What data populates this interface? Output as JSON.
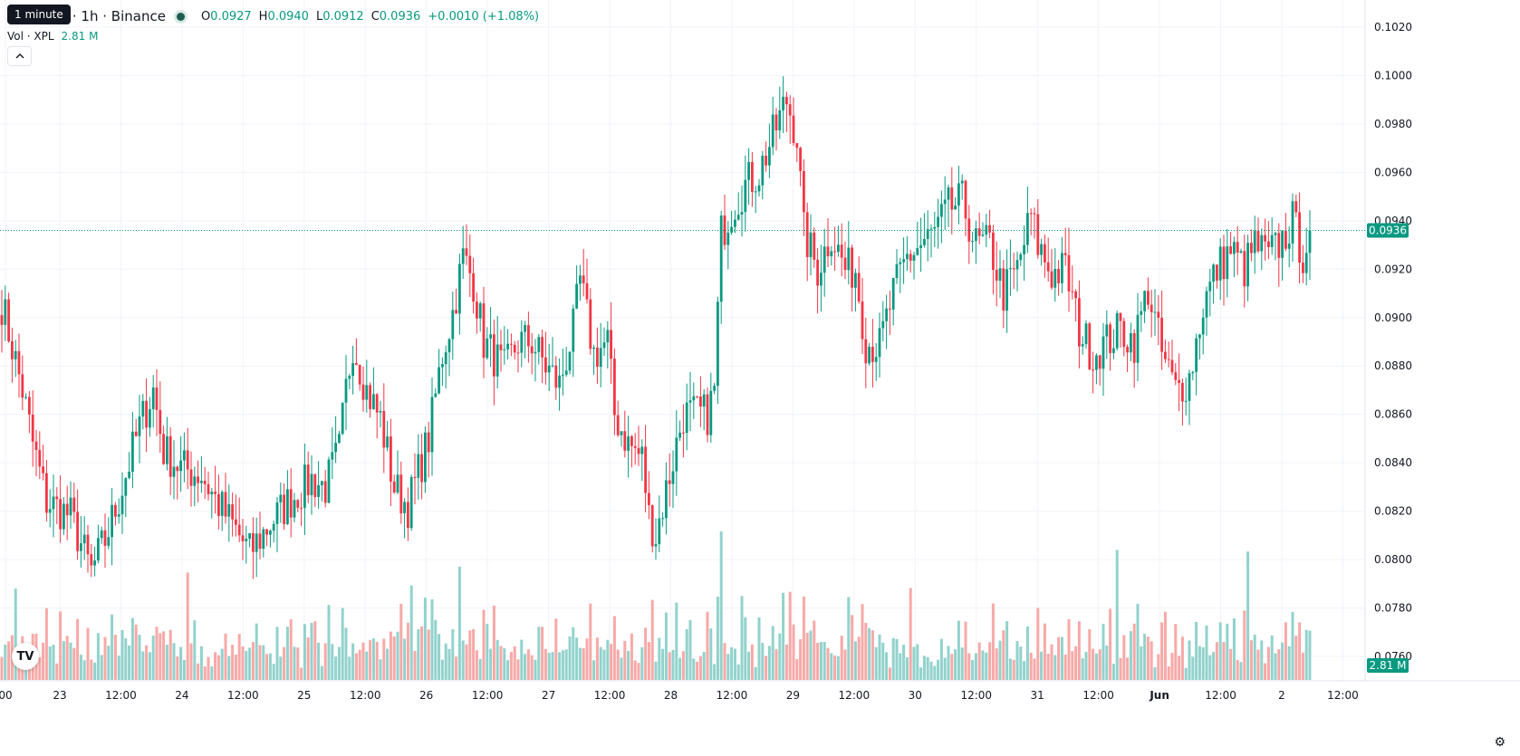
{
  "header": {
    "symbol": "TetherUS · 1h · Binance",
    "tooltip": "1 minute",
    "open_label": "O",
    "open": "0.0927",
    "high_label": "H",
    "high": "0.0940",
    "low_label": "L",
    "low": "0.0912",
    "close_label": "C",
    "close": "0.0936",
    "change": "+0.0010 (+1.08%)"
  },
  "volume": {
    "label": "Vol · XPL",
    "value": "2.81 M"
  },
  "price_tag": "0.0936",
  "volume_tag": "2.81 M",
  "icons": {
    "collapse": "chevron-up-icon",
    "logo": "tradingview-logo-icon",
    "settings": "gear-icon"
  },
  "colors": {
    "up": "#089981",
    "down": "#f23645",
    "up_volume": "#92d2cc",
    "down_volume": "#f7a9a7",
    "grid": "#f0f3fa"
  },
  "chart_data": {
    "type": "candlestick",
    "timeframe": "1h",
    "ylim": [
      0.0752,
      0.1028
    ],
    "y_ticks": [
      "0.0760",
      "0.0780",
      "0.0800",
      "0.0820",
      "0.0840",
      "0.0860",
      "0.0880",
      "0.0900",
      "0.0920",
      "0.0940",
      "0.0960",
      "0.0980",
      "0.1000",
      "0.1020"
    ],
    "x_ticks": [
      "00",
      "23",
      "12:00",
      "24",
      "12:00",
      "25",
      "12:00",
      "26",
      "12:00",
      "27",
      "12:00",
      "28",
      "12:00",
      "29",
      "12:00",
      "30",
      "12:00",
      "31",
      "12:00",
      "Jun",
      "12:00",
      "2",
      "12:00"
    ],
    "x_tick_bold": [
      19
    ],
    "last_close": 0.0936,
    "waypoints": [
      [
        0,
        0.0906
      ],
      [
        3,
        0.0888
      ],
      [
        6,
        0.087
      ],
      [
        9,
        0.0848
      ],
      [
        13,
        0.0824
      ],
      [
        20,
        0.0818
      ],
      [
        26,
        0.0795
      ],
      [
        30,
        0.0808
      ],
      [
        34,
        0.0825
      ],
      [
        40,
        0.0855
      ],
      [
        44,
        0.087
      ],
      [
        47,
        0.0845
      ],
      [
        52,
        0.0838
      ],
      [
        58,
        0.0835
      ],
      [
        62,
        0.0825
      ],
      [
        68,
        0.0812
      ],
      [
        72,
        0.0803
      ],
      [
        78,
        0.0815
      ],
      [
        84,
        0.0825
      ],
      [
        90,
        0.0833
      ],
      [
        94,
        0.083
      ],
      [
        98,
        0.0845
      ],
      [
        100,
        0.087
      ],
      [
        102,
        0.089
      ],
      [
        106,
        0.087
      ],
      [
        110,
        0.0858
      ],
      [
        114,
        0.083
      ],
      [
        118,
        0.0822
      ],
      [
        124,
        0.085
      ],
      [
        128,
        0.0885
      ],
      [
        131,
        0.0902
      ],
      [
        134,
        0.0925
      ],
      [
        137,
        0.0915
      ],
      [
        140,
        0.089
      ],
      [
        146,
        0.0878
      ],
      [
        150,
        0.089
      ],
      [
        154,
        0.089
      ],
      [
        158,
        0.088
      ],
      [
        162,
        0.0872
      ],
      [
        166,
        0.0895
      ],
      [
        168,
        0.0915
      ],
      [
        172,
        0.0885
      ],
      [
        176,
        0.089
      ],
      [
        178,
        0.086
      ],
      [
        182,
        0.0848
      ],
      [
        186,
        0.0842
      ],
      [
        188,
        0.0818
      ],
      [
        190,
        0.081
      ],
      [
        194,
        0.0835
      ],
      [
        198,
        0.086
      ],
      [
        202,
        0.086
      ],
      [
        205,
        0.086
      ],
      [
        207,
        0.087
      ],
      [
        209,
        0.0935
      ],
      [
        212,
        0.0945
      ],
      [
        216,
        0.0955
      ],
      [
        220,
        0.096
      ],
      [
        224,
        0.0975
      ],
      [
        228,
        0.099
      ],
      [
        231,
        0.0975
      ],
      [
        233,
        0.0935
      ],
      [
        237,
        0.092
      ],
      [
        241,
        0.0935
      ],
      [
        245,
        0.092
      ],
      [
        248,
        0.092
      ],
      [
        251,
        0.089
      ],
      [
        255,
        0.0888
      ],
      [
        259,
        0.091
      ],
      [
        263,
        0.0925
      ],
      [
        267,
        0.093
      ],
      [
        271,
        0.0935
      ],
      [
        275,
        0.0945
      ],
      [
        279,
        0.0948
      ],
      [
        283,
        0.093
      ],
      [
        287,
        0.093
      ],
      [
        291,
        0.091
      ],
      [
        295,
        0.092
      ],
      [
        299,
        0.0942
      ],
      [
        301,
        0.093
      ],
      [
        305,
        0.0918
      ],
      [
        309,
        0.092
      ],
      [
        313,
        0.0895
      ],
      [
        317,
        0.0885
      ],
      [
        321,
        0.089
      ],
      [
        325,
        0.0895
      ],
      [
        329,
        0.089
      ],
      [
        333,
        0.0912
      ],
      [
        337,
        0.0885
      ],
      [
        341,
        0.087
      ],
      [
        345,
        0.0875
      ],
      [
        349,
        0.0905
      ],
      [
        353,
        0.092
      ],
      [
        357,
        0.0928
      ],
      [
        361,
        0.092
      ],
      [
        364,
        0.093
      ],
      [
        368,
        0.0925
      ],
      [
        372,
        0.0932
      ],
      [
        375,
        0.094
      ],
      [
        378,
        0.0926
      ],
      [
        380,
        0.0936
      ]
    ],
    "volume_ylim": [
      0,
      22
    ]
  }
}
